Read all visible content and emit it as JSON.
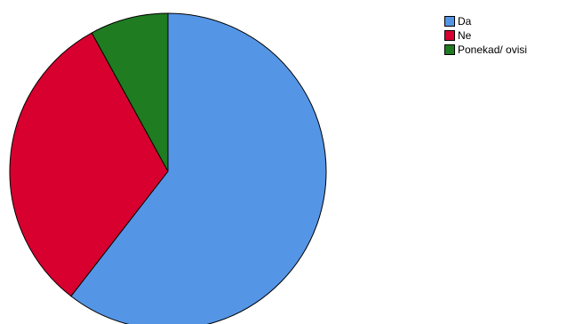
{
  "chart_data": {
    "type": "pie",
    "categories": [
      "Da",
      "Ne",
      "Ponekad/ ovisi"
    ],
    "values": [
      60.5,
      31.5,
      8.0
    ],
    "colors": [
      "#5595e5",
      "#d7002f",
      "#1f7c21"
    ],
    "legend_position": "top-right",
    "legend": [
      {
        "label": "Da",
        "color": "#5595e5"
      },
      {
        "label": "Ne",
        "color": "#d7002f"
      },
      {
        "label": "Ponekad/ ovisi",
        "color": "#1f7c21"
      }
    ]
  }
}
